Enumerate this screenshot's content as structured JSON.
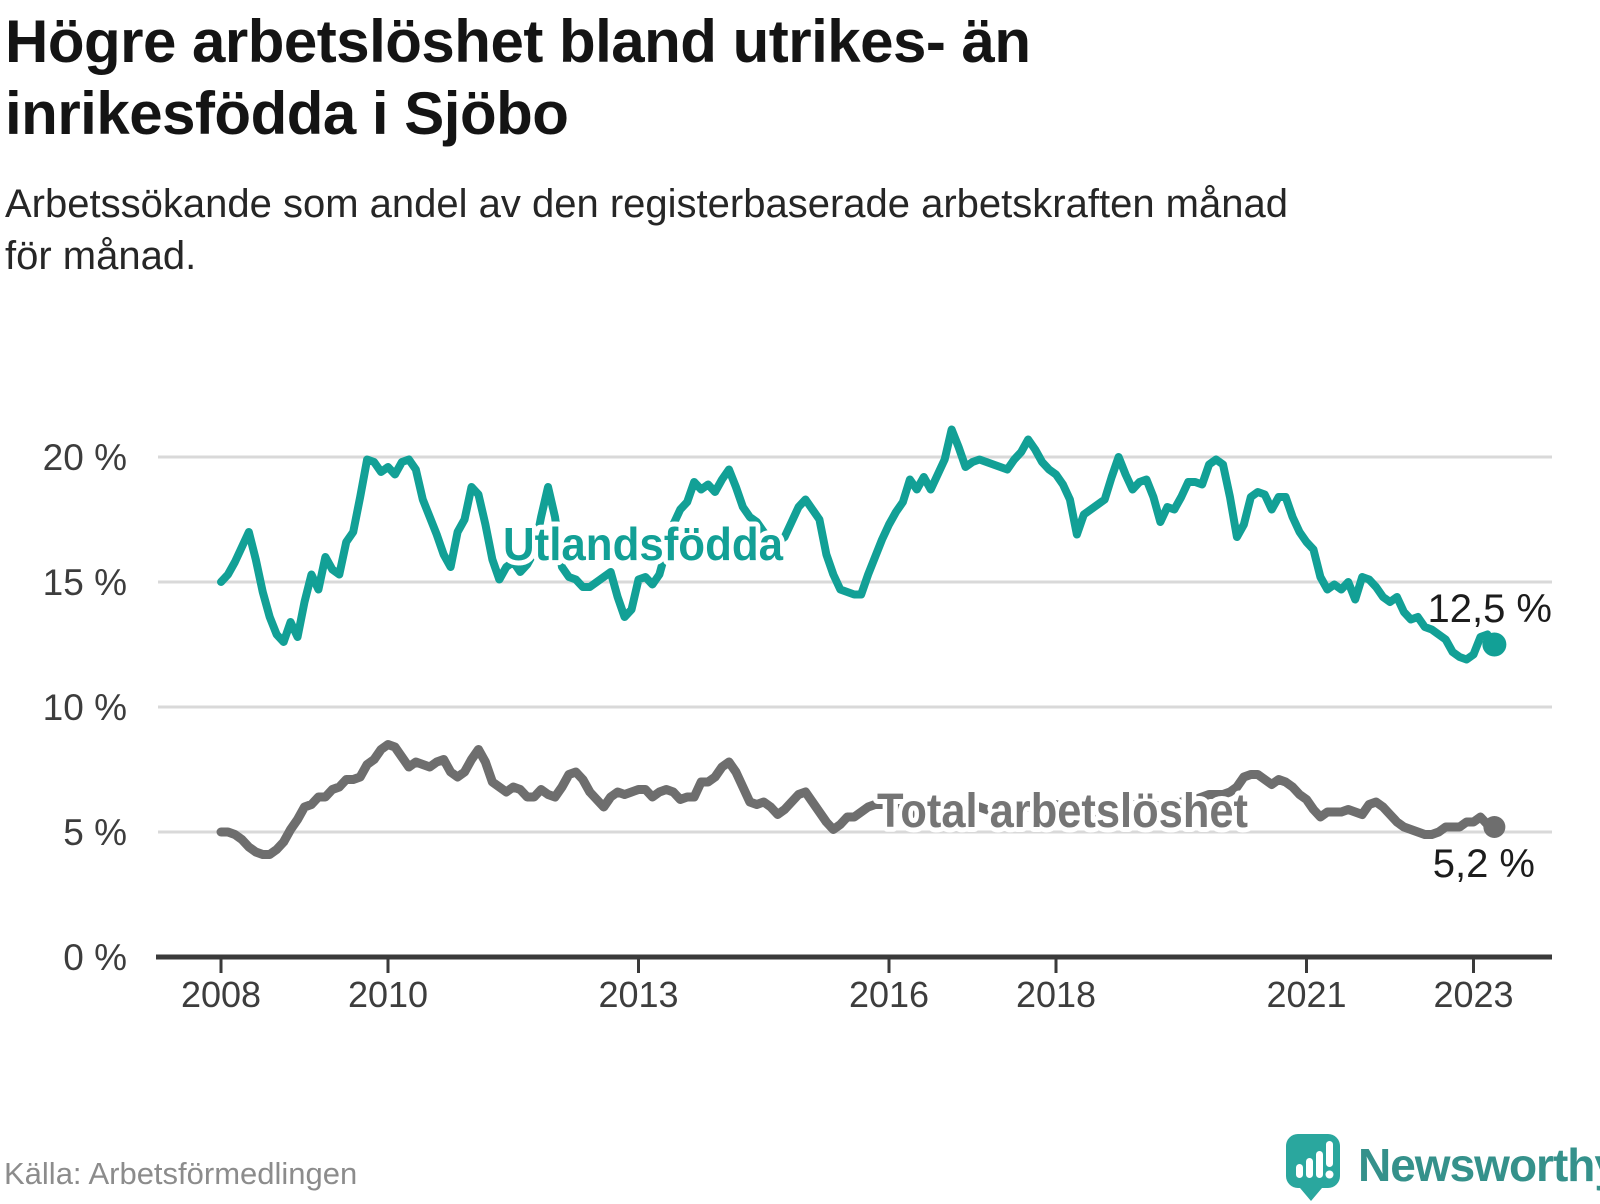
{
  "header": {
    "title_lines": [
      "Högre arbetslöshet bland utrikes- än",
      "inrikesfödda i Sjöbo"
    ],
    "subtitle_lines": [
      "Arbetssökande som andel av den registerbaserade arbetskraften månad",
      "för månad."
    ]
  },
  "chart_data": {
    "type": "line",
    "x_unit": "month",
    "x_start": "2008-01",
    "x_end": "2023-04",
    "grid": true,
    "y_axis": {
      "ticks": [
        0,
        5,
        10,
        15,
        20
      ],
      "tick_labels": [
        "0 %",
        "5 %",
        "10 %",
        "15 %",
        "20 %"
      ],
      "range": [
        0,
        21.5
      ]
    },
    "x_axis": {
      "ticks": [
        {
          "label": "2008",
          "month_offset": 0
        },
        {
          "label": "2010",
          "month_offset": 24
        },
        {
          "label": "2013",
          "month_offset": 60
        },
        {
          "label": "2016",
          "month_offset": 96
        },
        {
          "label": "2018",
          "month_offset": 120
        },
        {
          "label": "2021",
          "month_offset": 156
        },
        {
          "label": "2023",
          "month_offset": 180
        }
      ]
    },
    "series": [
      {
        "name": "Utlandsfödda",
        "color": "#12a096",
        "end_value": 12.5,
        "end_label": "12,5 %",
        "values": [
          15.0,
          15.3,
          15.8,
          16.4,
          17.0,
          15.9,
          14.6,
          13.6,
          12.9,
          12.6,
          13.4,
          12.8,
          14.2,
          15.3,
          14.7,
          16.0,
          15.5,
          15.3,
          16.6,
          17.0,
          18.4,
          19.9,
          19.8,
          19.4,
          19.6,
          19.3,
          19.8,
          19.9,
          19.5,
          18.3,
          17.6,
          16.9,
          16.1,
          15.6,
          17.0,
          17.5,
          18.8,
          18.5,
          17.3,
          15.9,
          15.1,
          15.6,
          15.8,
          15.4,
          15.7,
          16.2,
          17.6,
          18.8,
          17.6,
          15.6,
          15.2,
          15.1,
          14.8,
          14.8,
          15.0,
          15.2,
          15.4,
          14.4,
          13.6,
          13.9,
          15.1,
          15.2,
          14.9,
          15.3,
          16.3,
          17.3,
          17.9,
          18.2,
          19.0,
          18.7,
          18.9,
          18.6,
          19.1,
          19.5,
          18.8,
          18.0,
          17.6,
          17.4,
          17.0,
          16.7,
          16.6,
          16.8,
          17.4,
          18.0,
          18.3,
          17.9,
          17.5,
          16.1,
          15.3,
          14.7,
          14.6,
          14.5,
          14.5,
          15.3,
          16.0,
          16.7,
          17.3,
          17.8,
          18.2,
          19.1,
          18.7,
          19.2,
          18.7,
          19.3,
          19.9,
          21.1,
          20.4,
          19.6,
          19.8,
          19.9,
          19.8,
          19.7,
          19.6,
          19.5,
          19.9,
          20.2,
          20.7,
          20.3,
          19.8,
          19.5,
          19.3,
          18.9,
          18.3,
          16.9,
          17.7,
          17.9,
          18.1,
          18.3,
          19.2,
          20.0,
          19.3,
          18.7,
          19.0,
          19.1,
          18.4,
          17.4,
          18.0,
          17.9,
          18.4,
          19.0,
          19.0,
          18.9,
          19.7,
          19.9,
          19.7,
          18.4,
          16.8,
          17.3,
          18.4,
          18.6,
          18.5,
          17.9,
          18.4,
          18.4,
          17.6,
          17.0,
          16.6,
          16.3,
          15.2,
          14.7,
          14.9,
          14.7,
          15.0,
          14.3,
          15.2,
          15.1,
          14.8,
          14.4,
          14.2,
          14.4,
          13.8,
          13.5,
          13.6,
          13.2,
          13.1,
          12.9,
          12.7,
          12.2,
          12.0,
          11.9,
          12.1,
          12.8,
          12.9,
          12.5
        ]
      },
      {
        "name": "Total arbetslöshet",
        "color": "#6e6e6e",
        "end_value": 5.2,
        "end_label": "5,2 %",
        "values": [
          5.0,
          5.0,
          4.9,
          4.7,
          4.4,
          4.2,
          4.1,
          4.1,
          4.3,
          4.6,
          5.1,
          5.5,
          6.0,
          6.1,
          6.4,
          6.4,
          6.7,
          6.8,
          7.1,
          7.1,
          7.2,
          7.7,
          7.9,
          8.3,
          8.5,
          8.4,
          8.0,
          7.6,
          7.8,
          7.7,
          7.6,
          7.8,
          7.9,
          7.4,
          7.2,
          7.4,
          7.9,
          8.3,
          7.8,
          7.0,
          6.8,
          6.6,
          6.8,
          6.7,
          6.4,
          6.4,
          6.7,
          6.5,
          6.4,
          6.8,
          7.3,
          7.4,
          7.1,
          6.6,
          6.3,
          6.0,
          6.4,
          6.6,
          6.5,
          6.6,
          6.7,
          6.7,
          6.4,
          6.6,
          6.7,
          6.6,
          6.3,
          6.4,
          6.4,
          7.0,
          7.0,
          7.2,
          7.6,
          7.8,
          7.4,
          6.8,
          6.2,
          6.1,
          6.2,
          6.0,
          5.7,
          5.9,
          6.2,
          6.5,
          6.6,
          6.2,
          5.8,
          5.4,
          5.1,
          5.3,
          5.6,
          5.6,
          5.8,
          6.0,
          6.1,
          6.1,
          6.1,
          6.0,
          5.9,
          5.8,
          5.7,
          5.6,
          5.6,
          5.7,
          5.7,
          5.8,
          5.8,
          5.9,
          6.0,
          6.0,
          5.9,
          5.8,
          5.8,
          5.7,
          5.8,
          5.9,
          6.0,
          6.0,
          6.1,
          6.1,
          6.1,
          6.0,
          5.9,
          5.8,
          5.7,
          5.7,
          5.8,
          5.8,
          5.9,
          6.0,
          6.0,
          6.1,
          6.1,
          6.2,
          6.1,
          6.0,
          6.0,
          6.1,
          6.2,
          6.3,
          6.3,
          6.4,
          6.5,
          6.5,
          6.5,
          6.6,
          6.8,
          7.2,
          7.3,
          7.3,
          7.1,
          6.9,
          7.1,
          7.0,
          6.8,
          6.5,
          6.3,
          5.9,
          5.6,
          5.8,
          5.8,
          5.8,
          5.9,
          5.8,
          5.7,
          6.1,
          6.2,
          6.0,
          5.7,
          5.4,
          5.2,
          5.1,
          5.0,
          4.9,
          4.9,
          5.0,
          5.2,
          5.2,
          5.2,
          5.4,
          5.4,
          5.6,
          5.3,
          5.2
        ]
      }
    ]
  },
  "colors": {
    "grid": "#d9d9d9",
    "axis": "#3a3a3a",
    "tick_text": "#3d3d3d",
    "annotation_text": "#1c1c1c",
    "series_teal": "#12a096",
    "series_gray": "#6e6e6e",
    "label_gray": "#757575",
    "brand_teal": "#2aa79e"
  },
  "footer": {
    "source": "Källa: Arbetsförmedlingen",
    "brand": "Newsworthy"
  }
}
